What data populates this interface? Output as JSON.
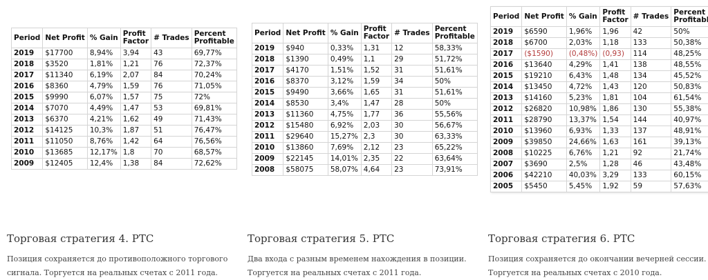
{
  "headers": [
    "Period",
    "Net Profit",
    "% Gain",
    "Profit Factor",
    "# Trades",
    "Percent Profitable"
  ],
  "strategies": [
    {
      "title": "Торговая стратегия 4. РТС",
      "description": "Позиция сохраняется до противоположного торгового сигнала. Торгуется на реальных счетах с 2011 года.",
      "rows": [
        [
          "2019",
          "$17700",
          "8,94%",
          "3,94",
          "43",
          "69,77%"
        ],
        [
          "2018",
          "$3520",
          "1,81%",
          "1,21",
          "76",
          "72,37%"
        ],
        [
          "2017",
          "$11340",
          "6,19%",
          "2,07",
          "84",
          "70,24%"
        ],
        [
          "2016",
          "$8360",
          "4,79%",
          "1,59",
          "76",
          "71,05%"
        ],
        [
          "2015",
          "$9990",
          "6,07%",
          "1,57",
          "75",
          "72%"
        ],
        [
          "2014",
          "$7070",
          "4,49%",
          "1,47",
          "53",
          "69,81%"
        ],
        [
          "2013",
          "$6370",
          "4,21%",
          "1,62",
          "49",
          "71,43%"
        ],
        [
          "2012",
          "$14125",
          "10,3%",
          "1,87",
          "51",
          "76,47%"
        ],
        [
          "2011",
          "$11050",
          "8,76%",
          "1,42",
          "64",
          "76,56%"
        ],
        [
          "2010",
          "$13685",
          "12,17%",
          "1,8",
          "70",
          "68,57%"
        ],
        [
          "2009",
          "$12405",
          "12,4%",
          "1,38",
          "84",
          "72,62%"
        ]
      ]
    },
    {
      "title": "Торговая стратегия 5. РТС",
      "description": "Два входа с разным временем нахождения в позиции. Торгуется на реальных счетах с 2011 года.",
      "rows": [
        [
          "2019",
          "$940",
          "0,33%",
          "1,31",
          "12",
          "58,33%"
        ],
        [
          "2018",
          "$1390",
          "0,49%",
          "1,1",
          "29",
          "51,72%"
        ],
        [
          "2017",
          "$4170",
          "1,51%",
          "1,52",
          "31",
          "51,61%"
        ],
        [
          "2016",
          "$8370",
          "3,12%",
          "1,59",
          "34",
          "50%"
        ],
        [
          "2015",
          "$9490",
          "3,66%",
          "1,65",
          "31",
          "51,61%"
        ],
        [
          "2014",
          "$8530",
          "3,4%",
          "1,47",
          "28",
          "50%"
        ],
        [
          "2013",
          "$11360",
          "4,75%",
          "1,77",
          "36",
          "55,56%"
        ],
        [
          "2012",
          "$15480",
          "6,92%",
          "2,03",
          "30",
          "56,67%"
        ],
        [
          "2011",
          "$29640",
          "15,27%",
          "2,3",
          "30",
          "63,33%"
        ],
        [
          "2010",
          "$13860",
          "7,69%",
          "2,12",
          "23",
          "65,22%"
        ],
        [
          "2009",
          "$22145",
          "14,01%",
          "2,35",
          "22",
          "63,64%"
        ],
        [
          "2008",
          "$58075",
          "58,07%",
          "4,64",
          "23",
          "73,91%"
        ]
      ]
    },
    {
      "title": "Торговая стратегия 6. РТС",
      "description": "Позиция сохраняется до окончании вечерней сессии. Торгуется на реальных счетах с 2010 года.",
      "negative_color": "#b33a3a",
      "negative_row_index": 2,
      "rows": [
        [
          "2019",
          "$6590",
          "1,96%",
          "1,96",
          "42",
          "50%"
        ],
        [
          "2018",
          "$6700",
          "2,03%",
          "1,18",
          "133",
          "50,38%"
        ],
        [
          "2017",
          "($1590)",
          "(0,48%)",
          "(0,93)",
          "114",
          "48,25%"
        ],
        [
          "2016",
          "$13640",
          "4,29%",
          "1,41",
          "138",
          "48,55%"
        ],
        [
          "2015",
          "$19210",
          "6,43%",
          "1,48",
          "134",
          "45,52%"
        ],
        [
          "2014",
          "$13450",
          "4,72%",
          "1,43",
          "120",
          "50,83%"
        ],
        [
          "2013",
          "$14160",
          "5,23%",
          "1,81",
          "104",
          "61,54%"
        ],
        [
          "2012",
          "$26820",
          "10,98%",
          "1,86",
          "130",
          "55,38%"
        ],
        [
          "2011",
          "$28790",
          "13,37%",
          "1,54",
          "144",
          "40,97%"
        ],
        [
          "2010",
          "$13960",
          "6,93%",
          "1,33",
          "137",
          "48,91%"
        ],
        [
          "2009",
          "$39850",
          "24,66%",
          "1,63",
          "161",
          "39,13%"
        ],
        [
          "2008",
          "$10225",
          "6,76%",
          "1,21",
          "92",
          "21,74%"
        ],
        [
          "2007",
          "$3690",
          "2,5%",
          "1,28",
          "46",
          "43,48%"
        ],
        [
          "2006",
          "$42210",
          "40,03%",
          "3,29",
          "133",
          "60,15%"
        ],
        [
          "2005",
          "$5450",
          "5,45%",
          "1,92",
          "59",
          "57,63%"
        ]
      ]
    }
  ]
}
